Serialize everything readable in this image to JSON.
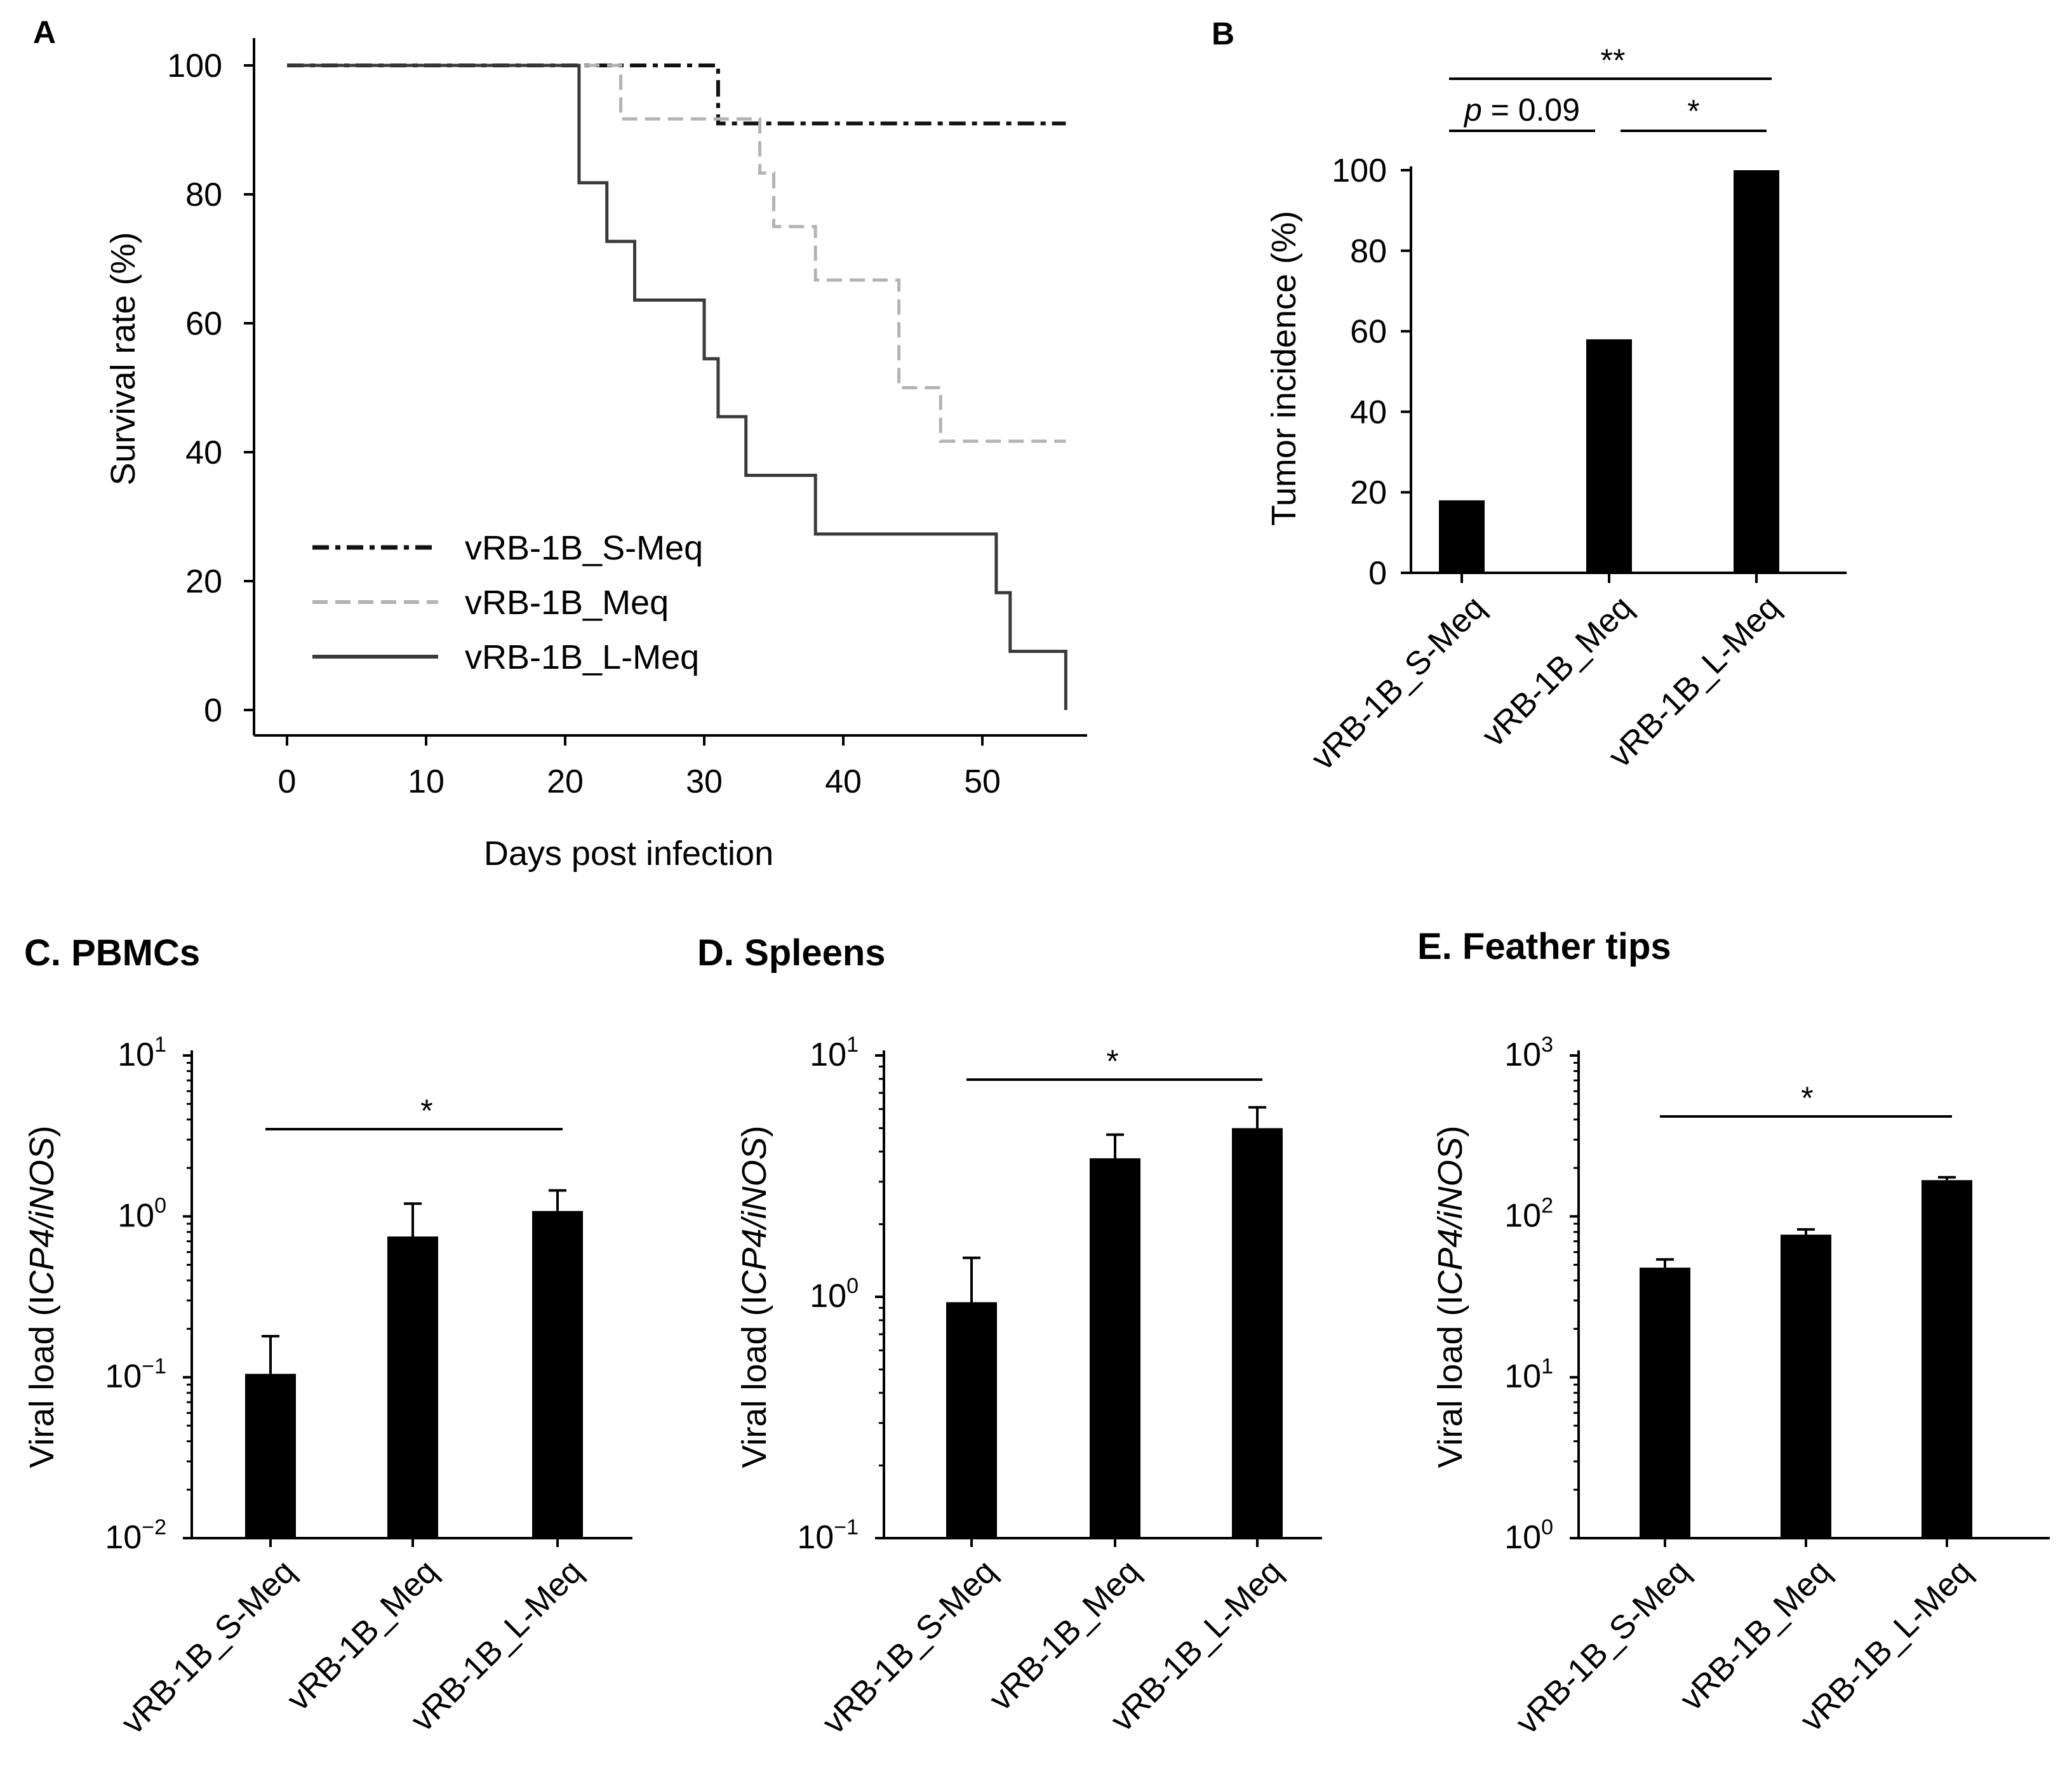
{
  "figure": {
    "panel_A": {
      "letter": "A",
      "chart_data": {
        "type": "line",
        "style": "step",
        "xlabel": "Days post infection",
        "ylabel": "Survival rate (%)",
        "xlim": [
          0,
          56
        ],
        "ylim": [
          0,
          100
        ],
        "xticks": [
          0,
          10,
          20,
          30,
          40,
          50
        ],
        "yticks": [
          0,
          20,
          40,
          60,
          80,
          100
        ],
        "legend_position": "bottom-left",
        "series": [
          {
            "name": "vRB-1B_S-Meq",
            "color": "#111111",
            "dash": "dashdot",
            "x": [
              0,
              31,
              31,
              56
            ],
            "y": [
              100,
              100,
              91,
              91
            ]
          },
          {
            "name": "vRB-1B_Meq",
            "color": "#b3b3b3",
            "dash": "dashed",
            "x": [
              0,
              24,
              24,
              34,
              34,
              35,
              35,
              38,
              38,
              44,
              44,
              47,
              47,
              56
            ],
            "y": [
              100,
              100,
              91.7,
              91.7,
              83.3,
              83.3,
              75,
              75,
              66.7,
              66.7,
              50,
              50,
              41.7,
              41.7
            ]
          },
          {
            "name": "vRB-1B_L-Meq",
            "color": "#3a3a3a",
            "dash": "solid",
            "x": [
              0,
              21,
              21,
              23,
              23,
              25,
              25,
              30,
              30,
              31,
              31,
              33,
              33,
              38,
              38,
              51,
              51,
              52,
              52,
              56,
              56
            ],
            "y": [
              100,
              100,
              81.8,
              81.8,
              72.7,
              72.7,
              63.6,
              63.6,
              54.5,
              54.5,
              45.5,
              45.5,
              36.4,
              36.4,
              27.3,
              27.3,
              18.2,
              18.2,
              9.1,
              9.1,
              0
            ]
          }
        ]
      }
    },
    "panel_B": {
      "letter": "B",
      "chart_data": {
        "type": "bar",
        "categories": [
          "vRB-1B_S-Meq",
          "vRB-1B_Meq",
          "vRB-1B_L-Meq"
        ],
        "values": [
          18,
          58,
          100
        ],
        "ylabel": "Tumor incidence (%)",
        "xlabel": "",
        "ylim": [
          0,
          100
        ],
        "yticks": [
          0,
          20,
          40,
          60,
          80,
          100
        ],
        "annotations": [
          {
            "from": 0,
            "to": 2,
            "label": "**"
          },
          {
            "from": 0,
            "to": 1,
            "label_italic": "p",
            "label_rest": " = 0.09"
          },
          {
            "from": 1,
            "to": 2,
            "label": "*"
          }
        ]
      }
    },
    "panel_C": {
      "title": "C. PBMCs",
      "chart_data": {
        "type": "bar",
        "scale": "log",
        "categories": [
          "vRB-1B_S-Meq",
          "vRB-1B_Meq",
          "vRB-1B_L-Meq"
        ],
        "values": [
          0.105,
          0.75,
          1.08
        ],
        "errors_upper": [
          0.18,
          1.2,
          1.45
        ],
        "ylim_exp": [
          -2,
          1
        ],
        "ytick_exponents": [
          "−2",
          "−1",
          "0",
          "1"
        ],
        "ylabel_pre": "Viral load (I",
        "ylabel_italic": "CP4/iNOS",
        "ylabel_post": ")",
        "annotations": [
          {
            "from": 0,
            "to": 2,
            "label": "*"
          }
        ]
      }
    },
    "panel_D": {
      "title": "D. Spleens",
      "chart_data": {
        "type": "bar",
        "scale": "log",
        "categories": [
          "vRB-1B_S-Meq",
          "vRB-1B_Meq",
          "vRB-1B_L-Meq"
        ],
        "values": [
          0.95,
          3.75,
          5.0
        ],
        "errors_upper": [
          1.45,
          4.7,
          6.1
        ],
        "ylim_exp": [
          -1,
          1
        ],
        "ytick_exponents": [
          "−1",
          "0",
          "1"
        ],
        "ylabel_pre": "Viral load (I",
        "ylabel_italic": "CP4/iNOS",
        "ylabel_post": ")",
        "annotations": [
          {
            "from": 0,
            "to": 2,
            "label": "*"
          }
        ]
      }
    },
    "panel_E": {
      "title": "E. Feather tips",
      "chart_data": {
        "type": "bar",
        "scale": "log",
        "categories": [
          "vRB-1B_S-Meq",
          "vRB-1B_Meq",
          "vRB-1B_L-Meq"
        ],
        "values": [
          48,
          77,
          168
        ],
        "errors_upper": [
          54,
          83,
          175
        ],
        "ylim_exp": [
          0,
          3
        ],
        "ytick_exponents": [
          "0",
          "1",
          "2",
          "3"
        ],
        "ylabel_pre": "Viral load (I",
        "ylabel_italic": "CP4/iNOS",
        "ylabel_post": ")",
        "annotations": [
          {
            "from": 0,
            "to": 2,
            "label": "*"
          }
        ]
      }
    }
  }
}
